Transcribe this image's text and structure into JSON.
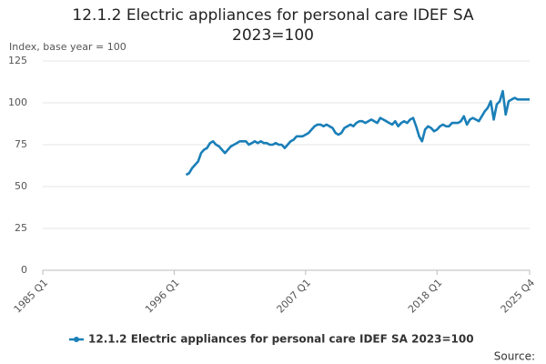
{
  "chart_data": {
    "type": "line",
    "title": "12.1.2 Electric appliances for personal care IDEF SA 2023=100",
    "y_label": "Index, base year = 100",
    "source": "Source:",
    "categories": [
      "1985 Q1",
      null,
      null,
      null,
      null,
      null,
      null,
      null,
      null,
      null,
      null,
      null,
      null,
      null,
      null,
      null,
      null,
      null,
      null,
      null,
      null,
      null,
      null,
      null,
      null,
      null,
      null,
      null,
      null,
      null,
      null,
      null,
      null,
      null,
      null,
      null,
      null,
      null,
      null,
      null,
      null,
      null,
      null,
      null,
      "1996 Q1",
      null,
      null,
      null,
      null,
      null,
      null,
      null,
      null,
      null,
      null,
      null,
      null,
      null,
      null,
      null,
      null,
      null,
      null,
      null,
      null,
      null,
      null,
      null,
      null,
      null,
      null,
      null,
      null,
      null,
      null,
      null,
      null,
      null,
      null,
      null,
      null,
      null,
      null,
      null,
      null,
      null,
      null,
      null,
      "2007 Q1",
      null,
      null,
      null,
      null,
      null,
      null,
      null,
      null,
      null,
      null,
      null,
      null,
      null,
      null,
      null,
      null,
      null,
      null,
      null,
      null,
      null,
      null,
      null,
      null,
      null,
      null,
      null,
      null,
      null,
      null,
      null,
      null,
      null,
      null,
      null,
      null,
      null,
      null,
      null,
      null,
      null,
      null,
      null,
      "2018 Q1",
      null,
      null,
      null,
      null,
      null,
      null,
      null,
      null,
      null,
      null,
      null,
      null,
      null,
      null,
      null,
      null,
      null,
      null,
      null,
      null,
      null,
      null,
      null,
      null,
      null,
      null,
      null,
      null,
      null,
      null,
      "2025 Q4"
    ],
    "series": [
      {
        "name": "12.1.2 Electric appliances for personal care IDEF SA 2023=100",
        "color": "#1a7fb8",
        "values": [
          null,
          null,
          null,
          null,
          null,
          null,
          null,
          null,
          null,
          null,
          null,
          null,
          null,
          null,
          null,
          null,
          null,
          null,
          null,
          null,
          null,
          null,
          null,
          null,
          null,
          null,
          null,
          null,
          null,
          null,
          null,
          null,
          null,
          null,
          null,
          null,
          null,
          null,
          null,
          null,
          null,
          null,
          null,
          null,
          null,
          null,
          null,
          null,
          57,
          58,
          61,
          63,
          65,
          70,
          72,
          73,
          76,
          77,
          75,
          74,
          72,
          70,
          72,
          74,
          75,
          76,
          77,
          77,
          77,
          75,
          76,
          77,
          76,
          77,
          76,
          76,
          75,
          75,
          76,
          75,
          75,
          73,
          75,
          77,
          78,
          80,
          80,
          80,
          81,
          82,
          84,
          86,
          87,
          87,
          86,
          87,
          86,
          85,
          82,
          81,
          82,
          85,
          86,
          87,
          86,
          88,
          89,
          89,
          88,
          89,
          90,
          89,
          88,
          91,
          90,
          89,
          88,
          87,
          89,
          86,
          88,
          89,
          88,
          90,
          91,
          86,
          80,
          77,
          84,
          86,
          85,
          83,
          84,
          86,
          87,
          86,
          86,
          88,
          88,
          88,
          89,
          92,
          87,
          90,
          91,
          90,
          89,
          92,
          95,
          97,
          101,
          90,
          99,
          101,
          107,
          93,
          101,
          102,
          103,
          102,
          102,
          102,
          102,
          102
        ]
      }
    ],
    "ylim": [
      0,
      125
    ],
    "yticks": [
      0,
      25,
      50,
      75,
      100,
      125
    ],
    "grid": true,
    "legend": "bottom"
  }
}
